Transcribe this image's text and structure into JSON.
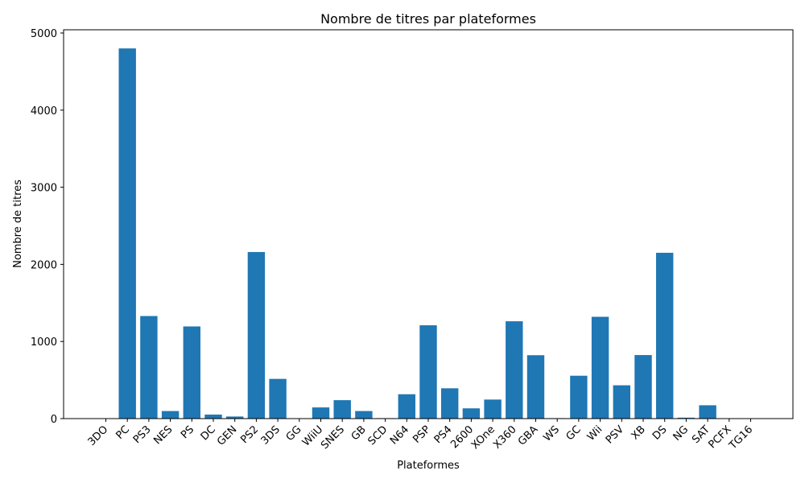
{
  "chart_data": {
    "type": "bar",
    "title": "Nombre de titres par plateformes",
    "xlabel": "Plateformes",
    "ylabel": "Nombre de titres",
    "ylim": [
      0,
      5000
    ],
    "yticks": [
      0,
      1000,
      2000,
      3000,
      4000,
      5000
    ],
    "grid": false,
    "bar_color": "#1f77b4",
    "categories": [
      "3DO",
      "PC",
      "PS3",
      "NES",
      "PS",
      "DC",
      "GEN",
      "PS2",
      "3DS",
      "GG",
      "WiiU",
      "SNES",
      "GB",
      "SCD",
      "N64",
      "PSP",
      "PS4",
      "2600",
      "XOne",
      "X360",
      "GBA",
      "WS",
      "GC",
      "Wii",
      "PSV",
      "XB",
      "DS",
      "NG",
      "SAT",
      "PCFX",
      "TG16"
    ],
    "values": [
      3,
      4800,
      1330,
      98,
      1195,
      52,
      27,
      2160,
      515,
      1,
      145,
      239,
      98,
      6,
      316,
      1210,
      393,
      133,
      247,
      1262,
      822,
      6,
      556,
      1320,
      432,
      824,
      2150,
      12,
      173,
      1,
      2
    ]
  }
}
